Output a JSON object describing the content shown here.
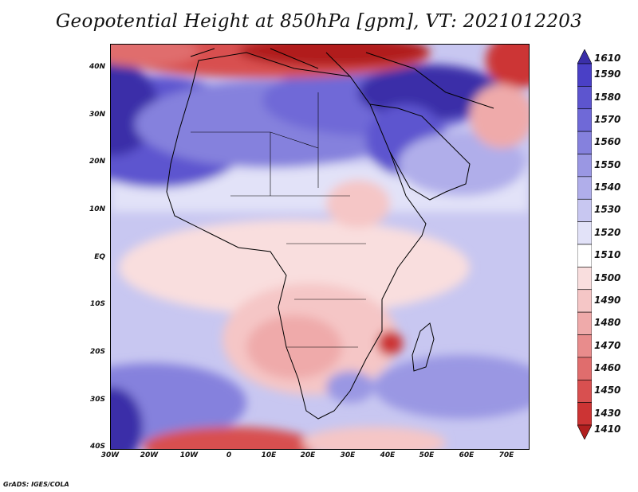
{
  "title": "Geopotential Height at 850hPa [gpm], VT: 2021012203",
  "footer": "GrADS: IGES/COLA",
  "lat_ticks": [
    "40N",
    "30N",
    "20N",
    "10N",
    "EQ",
    "10S",
    "20S",
    "30S",
    "40S"
  ],
  "lon_ticks": [
    "30W",
    "20W",
    "10W",
    "0",
    "10E",
    "20E",
    "30E",
    "40E",
    "50E",
    "60E",
    "70E"
  ],
  "colorbar": {
    "labels": [
      "1610",
      "1590",
      "1580",
      "1570",
      "1560",
      "1550",
      "1540",
      "1530",
      "1520",
      "1510",
      "1500",
      "1490",
      "1480",
      "1470",
      "1460",
      "1450",
      "1430",
      "1410"
    ],
    "colors": [
      "#3a2fa8",
      "#4a40c6",
      "#5d55cf",
      "#6f69d7",
      "#8581dd",
      "#9a97e3",
      "#b0aeea",
      "#c8c7f1",
      "#e2e2f8",
      "#ffffff",
      "#f9dede",
      "#f5c6c6",
      "#efaaaa",
      "#e88c8c",
      "#e06d6d",
      "#d85050",
      "#cc3434",
      "#b11f1f"
    ]
  }
}
